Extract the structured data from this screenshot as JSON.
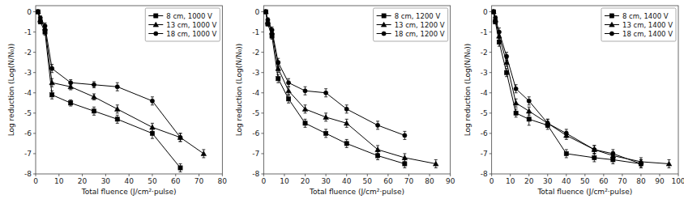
{
  "chart_data": [
    {
      "type": "line",
      "xlabel": "Total fluence (J/cm²·pulse)",
      "ylabel": "Log reduction (Log(N/N₀))",
      "xlim": [
        0,
        80
      ],
      "xticks": [
        0,
        10,
        20,
        30,
        40,
        50,
        60,
        70,
        80
      ],
      "ylim": [
        -8,
        0.3
      ],
      "yticks": [
        0,
        -1,
        -2,
        -3,
        -4,
        -5,
        -6,
        -7,
        -8
      ],
      "legend": "upper right",
      "series": [
        {
          "name": "8 cm, 1000 V",
          "marker": "square",
          "color": "black",
          "x": [
            1,
            2,
            4,
            7,
            15,
            25,
            35,
            50,
            62
          ],
          "values": [
            0,
            -0.5,
            -1.0,
            -4.1,
            -4.5,
            -4.9,
            -5.3,
            -6.0,
            -7.7
          ],
          "yerr": [
            0.05,
            0.1,
            0.15,
            0.2,
            0.15,
            0.2,
            0.2,
            0.25,
            0.2
          ]
        },
        {
          "name": "13 cm, 1000 V",
          "marker": "triangle",
          "color": "black",
          "x": [
            1,
            2,
            4,
            7,
            15,
            25,
            35,
            50,
            62,
            72
          ],
          "values": [
            0,
            -0.4,
            -0.8,
            -3.5,
            -3.7,
            -4.2,
            -4.8,
            -5.7,
            -6.2,
            -7.0
          ],
          "yerr": [
            0.05,
            0.1,
            0.15,
            0.2,
            0.15,
            0.15,
            0.2,
            0.2,
            0.2,
            0.2
          ]
        },
        {
          "name": "18 cm, 1000 V",
          "marker": "circle",
          "color": "black",
          "x": [
            1,
            2,
            4,
            7,
            15,
            25,
            35,
            50,
            62
          ],
          "values": [
            0,
            -0.3,
            -0.7,
            -2.8,
            -3.5,
            -3.6,
            -3.7,
            -4.4,
            -6.2
          ],
          "yerr": [
            0.05,
            0.1,
            0.15,
            0.2,
            0.15,
            0.15,
            0.2,
            0.2,
            0.2
          ]
        }
      ]
    },
    {
      "type": "line",
      "xlabel": "Total fluence (J/cm²·pulse)",
      "ylabel": "Log reduction (Log(N/N₀))",
      "xlim": [
        0,
        90
      ],
      "xticks": [
        0,
        10,
        20,
        30,
        40,
        50,
        60,
        70,
        80,
        90
      ],
      "ylim": [
        -8,
        0.3
      ],
      "yticks": [
        0,
        -1,
        -2,
        -3,
        -4,
        -5,
        -6,
        -7,
        -8
      ],
      "legend": "upper right",
      "series": [
        {
          "name": "8 cm, 1200 V",
          "marker": "square",
          "color": "black",
          "x": [
            1,
            2,
            4,
            7,
            12,
            20,
            30,
            40,
            55,
            68
          ],
          "values": [
            0,
            -0.6,
            -1.2,
            -3.3,
            -4.3,
            -5.5,
            -6.0,
            -6.5,
            -7.1,
            -7.5
          ],
          "yerr": [
            0.05,
            0.1,
            0.15,
            0.2,
            0.2,
            0.2,
            0.2,
            0.2,
            0.2,
            0.2
          ]
        },
        {
          "name": "13 cm, 1200 V",
          "marker": "triangle",
          "color": "black",
          "x": [
            1,
            2,
            4,
            7,
            12,
            20,
            30,
            40,
            55,
            68,
            83
          ],
          "values": [
            0,
            -0.5,
            -1.0,
            -2.8,
            -3.9,
            -4.8,
            -5.2,
            -5.5,
            -6.8,
            -7.2,
            -7.5
          ],
          "yerr": [
            0.05,
            0.1,
            0.15,
            0.2,
            0.2,
            0.2,
            0.2,
            0.2,
            0.2,
            0.2,
            0.2
          ]
        },
        {
          "name": "18 cm, 1200 V",
          "marker": "circle",
          "color": "black",
          "x": [
            1,
            2,
            4,
            7,
            12,
            20,
            30,
            40,
            55,
            68
          ],
          "values": [
            0,
            -0.4,
            -0.9,
            -2.5,
            -3.5,
            -3.9,
            -4.0,
            -4.8,
            -5.6,
            -6.1
          ],
          "yerr": [
            0.05,
            0.1,
            0.15,
            0.2,
            0.2,
            0.2,
            0.2,
            0.2,
            0.2,
            0.2
          ]
        }
      ]
    },
    {
      "type": "line",
      "xlabel": "Total fluence (J/cm²·pulse)",
      "ylabel": "Log reduction (Log(N/N₀))",
      "xlim": [
        0,
        100
      ],
      "xticks": [
        0,
        10,
        20,
        30,
        40,
        50,
        60,
        70,
        80,
        90,
        100
      ],
      "ylim": [
        -8,
        0.3
      ],
      "yticks": [
        0,
        -1,
        -2,
        -3,
        -4,
        -5,
        -6,
        -7,
        -8
      ],
      "legend": "upper right",
      "series": [
        {
          "name": "8 cm, 1400 V",
          "marker": "square",
          "color": "black",
          "x": [
            1,
            2,
            4,
            8,
            13,
            20,
            30,
            40,
            55,
            65,
            80
          ],
          "values": [
            0,
            -0.5,
            -1.5,
            -3.0,
            -5.0,
            -5.3,
            -5.6,
            -7.0,
            -7.2,
            -7.3,
            -7.5
          ],
          "yerr": [
            0.05,
            0.1,
            0.2,
            0.2,
            0.2,
            0.3,
            0.2,
            0.2,
            0.2,
            0.2,
            0.2
          ]
        },
        {
          "name": "13 cm, 1400 V",
          "marker": "triangle",
          "color": "black",
          "x": [
            1,
            2,
            4,
            8,
            13,
            20,
            30,
            40,
            55,
            65,
            80,
            95
          ],
          "values": [
            0,
            -0.4,
            -1.2,
            -2.5,
            -4.5,
            -4.9,
            -5.5,
            -6.1,
            -6.8,
            -7.1,
            -7.4,
            -7.5
          ],
          "yerr": [
            0.05,
            0.1,
            0.2,
            0.2,
            0.2,
            0.2,
            0.2,
            0.2,
            0.2,
            0.2,
            0.2,
            0.2
          ]
        },
        {
          "name": "18 cm, 1400 V",
          "marker": "circle",
          "color": "black",
          "x": [
            1,
            2,
            4,
            8,
            13,
            20,
            30,
            40,
            55,
            65,
            80
          ],
          "values": [
            0,
            -0.3,
            -1.0,
            -2.2,
            -3.8,
            -4.4,
            -5.5,
            -6.0,
            -6.8,
            -7.0,
            -7.5
          ],
          "yerr": [
            0.05,
            0.1,
            0.2,
            0.2,
            0.2,
            0.2,
            0.2,
            0.2,
            0.2,
            0.2,
            0.2
          ]
        }
      ]
    }
  ]
}
